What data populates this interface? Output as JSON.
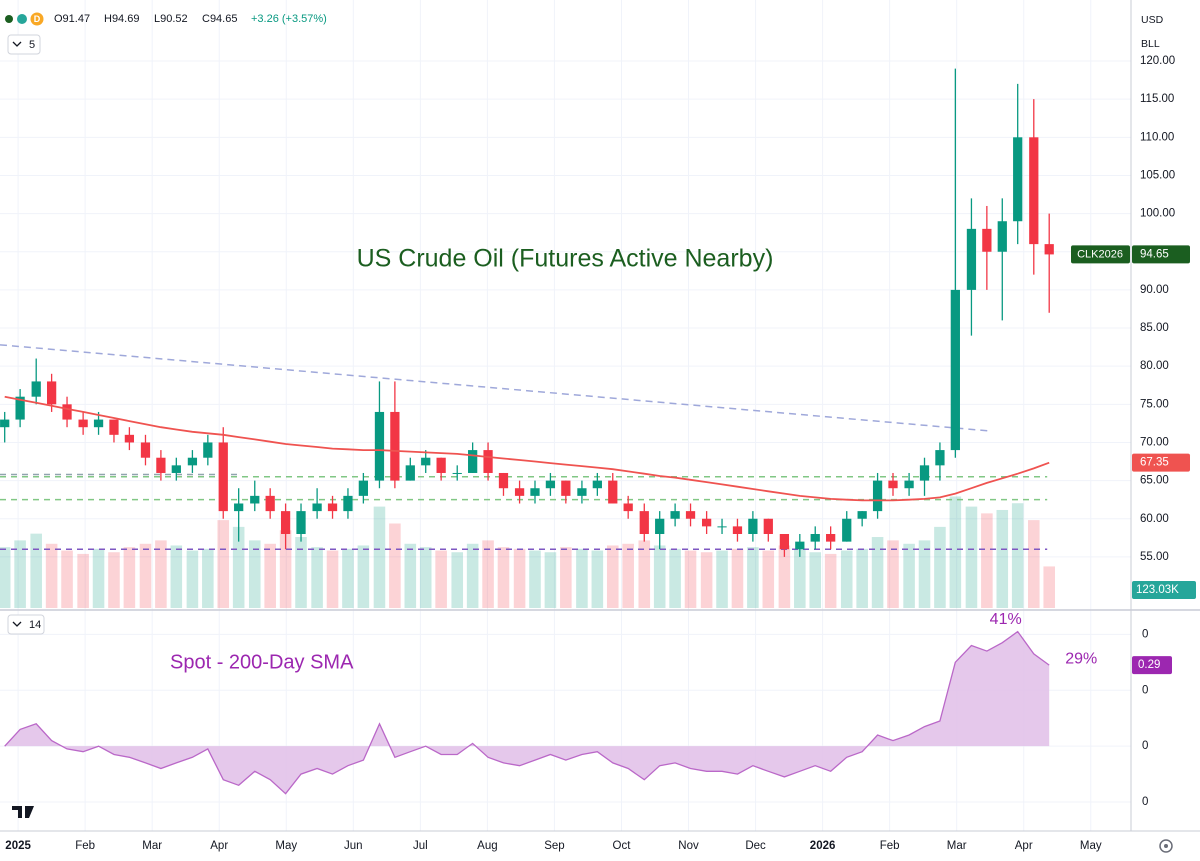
{
  "header": {
    "legend": [
      "O91.47",
      "H94.69",
      "L90.52",
      "C94.65",
      "+3.26 (+3.57%)"
    ],
    "interval": "D",
    "period": "5",
    "currency": "USD",
    "unit": "BLL",
    "osc_period": "14"
  },
  "chart_data": [
    {
      "type": "candlestick",
      "title": "US Crude Oil (Futures Active Nearby)",
      "symbol": "CLK2026",
      "up_color": "#089981",
      "down_color": "#f23645",
      "title_color": "#1b5e20",
      "x": [
        -0.2,
        0.03,
        0.27,
        0.5,
        0.73,
        0.97,
        1.2,
        1.43,
        1.66,
        1.9,
        2.13,
        2.36,
        2.6,
        2.83,
        3.06,
        3.29,
        3.53,
        3.76,
        3.99,
        4.22,
        4.46,
        4.69,
        4.92,
        5.15,
        5.39,
        5.62,
        5.85,
        6.08,
        6.31,
        6.55,
        6.78,
        7.01,
        7.24,
        7.48,
        7.71,
        7.94,
        8.17,
        8.41,
        8.64,
        8.87,
        9.1,
        9.34,
        9.57,
        9.8,
        10.03,
        10.27,
        10.5,
        10.73,
        10.96,
        11.19,
        11.43,
        11.66,
        11.89,
        12.12,
        12.36,
        12.59,
        12.82,
        13.05,
        13.29,
        13.52,
        13.75,
        13.98,
        14.22,
        14.45,
        14.68,
        14.91,
        15.15,
        15.38
      ],
      "open": [
        72,
        73,
        76,
        78,
        75,
        73,
        72,
        73,
        71,
        70,
        68,
        66,
        67,
        68,
        70,
        61,
        62,
        63,
        61,
        58,
        61,
        62,
        61,
        63,
        65,
        74,
        65,
        67,
        68,
        66,
        66,
        69,
        66,
        64,
        63,
        64,
        65,
        63,
        64,
        65,
        62,
        61,
        58,
        60,
        61,
        60,
        59,
        59,
        58,
        60,
        58,
        56,
        57,
        58,
        57,
        60,
        61,
        65,
        64,
        65,
        67,
        69,
        90,
        98,
        95,
        99,
        110,
        96
      ],
      "high": [
        74,
        77,
        81,
        79,
        76,
        74,
        74,
        73,
        72,
        71,
        69,
        68,
        69,
        71,
        72,
        64,
        65,
        64,
        62,
        62,
        64,
        63,
        64,
        66,
        78,
        78,
        68,
        69,
        68,
        67,
        70,
        70,
        66,
        65,
        65,
        66,
        65,
        65,
        66,
        66,
        63,
        62,
        61,
        62,
        62,
        61,
        60,
        60,
        61,
        60,
        58,
        58,
        59,
        59,
        61,
        61,
        66,
        66,
        66,
        68,
        70,
        119,
        102,
        101,
        102,
        117,
        115,
        100
      ],
      "low": [
        70,
        72,
        75,
        74,
        72,
        71,
        71,
        70,
        69,
        67,
        65,
        65,
        66,
        67,
        60,
        57,
        61,
        60,
        56,
        57,
        60,
        60,
        60,
        62,
        64,
        64,
        65,
        66,
        65,
        65,
        66,
        65,
        63,
        62,
        62,
        63,
        62,
        62,
        63,
        62,
        60,
        57,
        56,
        59,
        59,
        58,
        58,
        57,
        57,
        57,
        55,
        55,
        56,
        56,
        57,
        59,
        60,
        63,
        63,
        63,
        65,
        68,
        84,
        90,
        86,
        96,
        92,
        87
      ],
      "close": [
        73,
        76,
        78,
        75,
        73,
        72,
        73,
        71,
        70,
        68,
        66,
        67,
        68,
        70,
        61,
        62,
        63,
        61,
        58,
        61,
        62,
        61,
        63,
        65,
        74,
        65,
        67,
        68,
        66,
        66,
        69,
        66,
        64,
        63,
        64,
        65,
        63,
        64,
        65,
        62,
        61,
        58,
        60,
        61,
        60,
        59,
        59,
        58,
        60,
        58,
        56,
        57,
        58,
        57,
        60,
        61,
        65,
        64,
        65,
        67,
        69,
        90,
        98,
        95,
        99,
        110,
        96,
        94.65
      ],
      "sma": {
        "color": "#ef5350",
        "values": [
          76,
          75.6,
          75.2,
          74.8,
          74.4,
          74.0,
          73.6,
          73.2,
          72.8,
          72.4,
          72.0,
          71.7,
          71.4,
          71.2,
          71.0,
          70.7,
          70.4,
          70.1,
          69.8,
          69.6,
          69.4,
          69.2,
          69.1,
          69.0,
          69.0,
          68.9,
          68.8,
          68.7,
          68.6,
          68.5,
          68.3,
          68.1,
          67.9,
          67.7,
          67.5,
          67.3,
          67.1,
          66.9,
          66.7,
          66.5,
          66.2,
          65.9,
          65.6,
          65.4,
          65.1,
          64.8,
          64.5,
          64.2,
          63.9,
          63.6,
          63.3,
          63.0,
          62.8,
          62.6,
          62.5,
          62.4,
          62.4,
          62.4,
          62.5,
          62.6,
          62.8,
          63.3,
          64.0,
          64.7,
          65.3,
          65.9,
          66.6,
          67.35
        ]
      },
      "levels": [
        {
          "value": 65.5,
          "color": "#81c784",
          "x": [
            -0.27,
            15.35
          ]
        },
        {
          "value": 62.5,
          "color": "#81c784",
          "x": [
            -0.27,
            15.35
          ]
        },
        {
          "value": 56,
          "color": "#7e57c2",
          "x": [
            -0.27,
            15.35
          ]
        },
        {
          "value": 65.8,
          "color": "#90a4ae",
          "x": [
            -0.27,
            3.31
          ]
        }
      ],
      "trendline": {
        "x": [
          -0.27,
          14.5
        ],
        "values": [
          82.8,
          71.5
        ],
        "color": "#9fa8da"
      },
      "xlim": [
        -0.27,
        16.6
      ],
      "xticks": [
        {
          "value": 0,
          "label": "2025"
        },
        {
          "value": 1,
          "label": "Feb"
        },
        {
          "value": 2,
          "label": "Mar"
        },
        {
          "value": 3,
          "label": "Apr"
        },
        {
          "value": 4,
          "label": "May"
        },
        {
          "value": 5,
          "label": "Jun"
        },
        {
          "value": 6,
          "label": "Jul"
        },
        {
          "value": 7,
          "label": "Aug"
        },
        {
          "value": 8,
          "label": "Sep"
        },
        {
          "value": 9,
          "label": "Oct"
        },
        {
          "value": 10,
          "label": "Nov"
        },
        {
          "value": 11,
          "label": "Dec"
        },
        {
          "value": 12,
          "label": "2026"
        },
        {
          "value": 13,
          "label": "Feb"
        },
        {
          "value": 14,
          "label": "Mar"
        },
        {
          "value": 15,
          "label": "Apr"
        },
        {
          "value": 16,
          "label": "May"
        }
      ],
      "ylim": [
        48.3,
        128
      ],
      "yticks": [
        {
          "value": 55,
          "label": "55.00"
        },
        {
          "value": 60,
          "label": "60.00"
        },
        {
          "value": 65,
          "label": "65.00"
        },
        {
          "value": 70,
          "label": "70.00"
        },
        {
          "value": 75,
          "label": "75.00"
        },
        {
          "value": 80,
          "label": "80.00"
        },
        {
          "value": 85,
          "label": "85.00"
        },
        {
          "value": 90,
          "label": "90.00"
        },
        {
          "value": 95,
          "label": "95.00"
        },
        {
          "value": 100,
          "label": "100.00"
        },
        {
          "value": 105,
          "label": "105.00"
        },
        {
          "value": 110,
          "label": "110.00"
        },
        {
          "value": 115,
          "label": "115.00"
        },
        {
          "value": 120,
          "label": "120.00"
        }
      ],
      "grid": true
    },
    {
      "type": "volume",
      "color": "#26a69a",
      "values": [
        180,
        200,
        220,
        190,
        170,
        160,
        175,
        165,
        180,
        190,
        200,
        185,
        170,
        175,
        260,
        240,
        200,
        190,
        230,
        210,
        180,
        170,
        175,
        185,
        300,
        250,
        190,
        180,
        170,
        165,
        190,
        200,
        180,
        175,
        170,
        165,
        180,
        175,
        170,
        185,
        190,
        200,
        185,
        175,
        170,
        165,
        170,
        175,
        180,
        170,
        185,
        175,
        165,
        160,
        170,
        175,
        210,
        200,
        190,
        200,
        240,
        330,
        300,
        280,
        290,
        310,
        260,
        123.03
      ],
      "last_label": "123.03K",
      "ylim": [
        0,
        1000
      ]
    },
    {
      "type": "area",
      "title": "Spot - 200-Day SMA",
      "color": "#ba68c8",
      "fill": "#e1bee7",
      "title_color": "#9c27b0",
      "values": [
        0.0,
        0.06,
        0.08,
        0.02,
        -0.01,
        -0.02,
        0.0,
        -0.03,
        -0.04,
        -0.06,
        -0.08,
        -0.06,
        -0.04,
        -0.01,
        -0.12,
        -0.14,
        -0.09,
        -0.12,
        -0.17,
        -0.1,
        -0.08,
        -0.1,
        -0.07,
        -0.05,
        0.08,
        -0.04,
        -0.02,
        0.0,
        -0.03,
        -0.03,
        0.01,
        -0.04,
        -0.06,
        -0.07,
        -0.05,
        -0.03,
        -0.05,
        -0.03,
        -0.02,
        -0.06,
        -0.08,
        -0.12,
        -0.07,
        -0.06,
        -0.08,
        -0.09,
        -0.09,
        -0.1,
        -0.07,
        -0.09,
        -0.11,
        -0.09,
        -0.07,
        -0.09,
        -0.04,
        -0.02,
        0.04,
        0.02,
        0.04,
        0.07,
        0.09,
        0.3,
        0.36,
        0.34,
        0.37,
        0.41,
        0.33,
        0.29
      ],
      "annotations": [
        {
          "label": "41%",
          "value": 0.41
        },
        {
          "label": "29%",
          "value": 0.29
        }
      ],
      "ylim": [
        -0.3,
        0.48
      ],
      "yticks": [
        {
          "value": 0.4,
          "label": "0"
        },
        {
          "value": 0.2,
          "label": "0"
        },
        0,
        {
          "value": -0.2,
          "label": "0"
        }
      ]
    }
  ]
}
